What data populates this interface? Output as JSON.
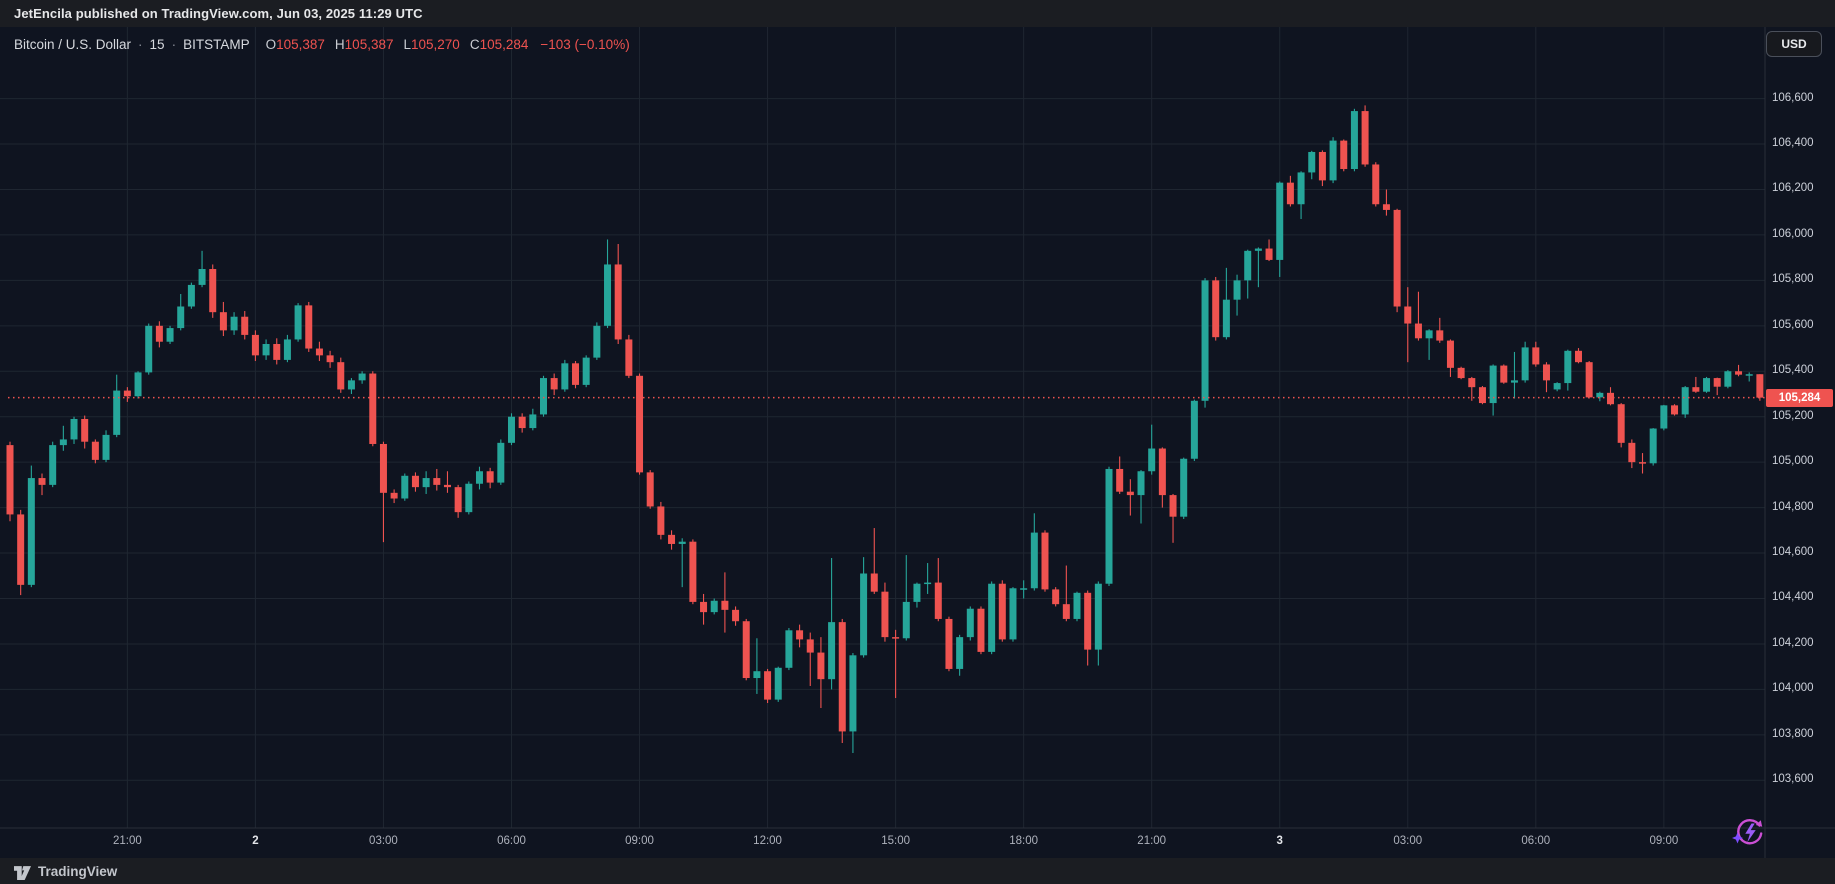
{
  "header": {
    "attribution": "JetEncila published on TradingView.com, Jun 03, 2025 11:29 UTC"
  },
  "symbol_bar": {
    "name": "Bitcoin / U.S. Dollar",
    "separator": "·",
    "interval": "15",
    "exchange": "BITSTAMP",
    "ohlc": [
      {
        "prefix": "O",
        "value": "105,387"
      },
      {
        "prefix": "H",
        "value": "105,387"
      },
      {
        "prefix": "L",
        "value": "105,270"
      },
      {
        "prefix": "C",
        "value": "105,284"
      }
    ],
    "change": "−103 (−0.10%)"
  },
  "currency_button": "USD",
  "footer": {
    "brand": "TradingView"
  },
  "price_axis": {
    "labels": [
      "106,600",
      "106,400",
      "106,200",
      "106,000",
      "105,800",
      "105,600",
      "105,400",
      "105,200",
      "105,000",
      "104,800",
      "104,600",
      "104,400",
      "104,200",
      "104,000",
      "103,800",
      "103,600"
    ],
    "last_price_label": "105,284"
  },
  "time_axis": {
    "labels": [
      {
        "text": "21:00",
        "candle_index": 11,
        "day": false
      },
      {
        "text": "2",
        "candle_index": 23,
        "day": true
      },
      {
        "text": "03:00",
        "candle_index": 35,
        "day": false
      },
      {
        "text": "06:00",
        "candle_index": 47,
        "day": false
      },
      {
        "text": "09:00",
        "candle_index": 59,
        "day": false
      },
      {
        "text": "12:00",
        "candle_index": 71,
        "day": false
      },
      {
        "text": "15:00",
        "candle_index": 83,
        "day": false
      },
      {
        "text": "18:00",
        "candle_index": 95,
        "day": false
      },
      {
        "text": "21:00",
        "candle_index": 107,
        "day": false
      },
      {
        "text": "3",
        "candle_index": 119,
        "day": true
      },
      {
        "text": "03:00",
        "candle_index": 131,
        "day": false
      },
      {
        "text": "06:00",
        "candle_index": 143,
        "day": false
      },
      {
        "text": "09:00",
        "candle_index": 155,
        "day": false
      }
    ]
  },
  "chart_data": {
    "type": "candlestick",
    "title": "Bitcoin / U.S. Dollar",
    "symbol": "BTCUSD",
    "exchange": "BITSTAMP",
    "interval_minutes": 15,
    "start_time": "2025-06-01 18:15 UTC",
    "end_time": "2025-06-03 11:15 UTC",
    "last_candle": {
      "open": 105387,
      "high": 105387,
      "low": 105270,
      "close": 105284,
      "change": -103,
      "change_pct": -0.1
    },
    "visible_price_range": [
      103390,
      106915
    ],
    "price_gridlines": [
      106600,
      106400,
      106200,
      106000,
      105800,
      105600,
      105400,
      105200,
      105000,
      104800,
      104600,
      104400,
      104200,
      104000,
      103800,
      103600
    ],
    "grid": true,
    "legend_position": "top-left",
    "up_color": "#26a69a",
    "down_color": "#ef5350",
    "last_price_line_color": "#ef5350",
    "candles": [
      [
        105075,
        105090,
        104740,
        104770
      ],
      [
        104770,
        104790,
        104415,
        104460
      ],
      [
        104460,
        104985,
        104450,
        104930
      ],
      [
        104930,
        104950,
        104855,
        104900
      ],
      [
        104900,
        105090,
        104890,
        105075
      ],
      [
        105075,
        105160,
        105050,
        105100
      ],
      [
        105100,
        105200,
        105080,
        105190
      ],
      [
        105190,
        105205,
        105060,
        105090
      ],
      [
        105090,
        105100,
        104995,
        105010
      ],
      [
        105010,
        105140,
        105000,
        105120
      ],
      [
        105120,
        105385,
        105110,
        105315
      ],
      [
        105315,
        105330,
        105265,
        105290
      ],
      [
        105290,
        105400,
        105280,
        105395
      ],
      [
        105395,
        105610,
        105385,
        105600
      ],
      [
        105600,
        105620,
        105505,
        105530
      ],
      [
        105530,
        105600,
        105520,
        105590
      ],
      [
        105590,
        105740,
        105580,
        105685
      ],
      [
        105685,
        105790,
        105675,
        105780
      ],
      [
        105780,
        105930,
        105770,
        105850
      ],
      [
        105850,
        105870,
        105635,
        105660
      ],
      [
        105660,
        105705,
        105555,
        105580
      ],
      [
        105580,
        105660,
        105560,
        105640
      ],
      [
        105640,
        105665,
        105540,
        105560
      ],
      [
        105560,
        105580,
        105445,
        105470
      ],
      [
        105470,
        105540,
        105450,
        105520
      ],
      [
        105520,
        105545,
        105430,
        105450
      ],
      [
        105450,
        105560,
        105440,
        105540
      ],
      [
        105540,
        105700,
        105530,
        105690
      ],
      [
        105690,
        105705,
        105485,
        105500
      ],
      [
        105500,
        105530,
        105445,
        105470
      ],
      [
        105470,
        105490,
        105415,
        105440
      ],
      [
        105440,
        105460,
        105305,
        105320
      ],
      [
        105320,
        105370,
        105300,
        105360
      ],
      [
        105360,
        105400,
        105345,
        105390
      ],
      [
        105390,
        105400,
        105070,
        105080
      ],
      [
        105080,
        105090,
        104648,
        104865
      ],
      [
        104865,
        104880,
        104820,
        104840
      ],
      [
        104840,
        104950,
        104830,
        104940
      ],
      [
        104940,
        104955,
        104870,
        104890
      ],
      [
        104890,
        104960,
        104860,
        104930
      ],
      [
        104930,
        104970,
        104875,
        104900
      ],
      [
        104900,
        104960,
        104865,
        104890
      ],
      [
        104890,
        104900,
        104755,
        104780
      ],
      [
        104780,
        104915,
        104770,
        104905
      ],
      [
        104905,
        104980,
        104880,
        104960
      ],
      [
        104960,
        104975,
        104885,
        104910
      ],
      [
        104910,
        105100,
        104900,
        105085
      ],
      [
        105085,
        105215,
        105075,
        105200
      ],
      [
        105200,
        105215,
        105130,
        105150
      ],
      [
        105150,
        105235,
        105140,
        105210
      ],
      [
        105210,
        105380,
        105200,
        105370
      ],
      [
        105370,
        105390,
        105295,
        105320
      ],
      [
        105320,
        105450,
        105310,
        105435
      ],
      [
        105435,
        105445,
        105325,
        105340
      ],
      [
        105340,
        105470,
        105330,
        105460
      ],
      [
        105460,
        105615,
        105450,
        105600
      ],
      [
        105600,
        105980,
        105590,
        105870
      ],
      [
        105870,
        105960,
        105520,
        105540
      ],
      [
        105540,
        105560,
        105370,
        105380
      ],
      [
        105380,
        105390,
        104945,
        104955
      ],
      [
        104955,
        104965,
        104795,
        104805
      ],
      [
        104805,
        104825,
        104660,
        104680
      ],
      [
        104680,
        104700,
        104615,
        104640
      ],
      [
        104640,
        104665,
        104450,
        104650
      ],
      [
        104650,
        104660,
        104375,
        104385
      ],
      [
        104385,
        104420,
        104285,
        104340
      ],
      [
        104340,
        104400,
        104330,
        104390
      ],
      [
        104390,
        104515,
        104250,
        104350
      ],
      [
        104350,
        104365,
        104280,
        104300
      ],
      [
        104300,
        104310,
        104040,
        104050
      ],
      [
        104050,
        104225,
        103980,
        104080
      ],
      [
        104080,
        104090,
        103940,
        103955
      ],
      [
        103955,
        104100,
        103945,
        104095
      ],
      [
        104095,
        104270,
        104085,
        104260
      ],
      [
        104260,
        104285,
        104185,
        104220
      ],
      [
        104220,
        104250,
        104015,
        104162
      ],
      [
        104162,
        104230,
        103918,
        104045
      ],
      [
        104045,
        104578,
        104000,
        104296
      ],
      [
        104296,
        104310,
        103764,
        103815
      ],
      [
        103815,
        104160,
        103720,
        104150
      ],
      [
        104150,
        104582,
        104140,
        104510
      ],
      [
        104510,
        104710,
        104420,
        104430
      ],
      [
        104430,
        104470,
        104210,
        104230
      ],
      [
        104230,
        104262,
        103962,
        104225
      ],
      [
        104225,
        104591,
        104215,
        104385
      ],
      [
        104385,
        104470,
        104360,
        104465
      ],
      [
        104465,
        104556,
        104420,
        104470
      ],
      [
        104470,
        104578,
        104300,
        104310
      ],
      [
        104310,
        104320,
        104080,
        104090
      ],
      [
        104090,
        104240,
        104060,
        104230
      ],
      [
        104230,
        104365,
        104215,
        104355
      ],
      [
        104355,
        104365,
        104155,
        104165
      ],
      [
        104165,
        104475,
        104155,
        104465
      ],
      [
        104465,
        104480,
        104210,
        104220
      ],
      [
        104220,
        104450,
        104210,
        104445
      ],
      [
        104445,
        104480,
        104400,
        104445
      ],
      [
        104445,
        104775,
        104435,
        104690
      ],
      [
        104690,
        104700,
        104430,
        104440
      ],
      [
        104440,
        104450,
        104365,
        104375
      ],
      [
        104375,
        104545,
        104300,
        104310
      ],
      [
        104310,
        104430,
        104300,
        104425
      ],
      [
        104425,
        104435,
        104105,
        104175
      ],
      [
        104175,
        104475,
        104105,
        104465
      ],
      [
        104465,
        104980,
        104455,
        104970
      ],
      [
        104970,
        105025,
        104860,
        104870
      ],
      [
        104870,
        104925,
        104765,
        104855
      ],
      [
        104855,
        104965,
        104730,
        104960
      ],
      [
        104960,
        105165,
        104945,
        105060
      ],
      [
        105060,
        105065,
        104800,
        104855
      ],
      [
        104855,
        104860,
        104645,
        104760
      ],
      [
        104760,
        105020,
        104750,
        105015
      ],
      [
        105015,
        105275,
        105005,
        105270
      ],
      [
        105270,
        105810,
        105240,
        105800
      ],
      [
        105800,
        105815,
        105535,
        105550
      ],
      [
        105550,
        105855,
        105540,
        105715
      ],
      [
        105715,
        105825,
        105645,
        105800
      ],
      [
        105800,
        105935,
        105720,
        105930
      ],
      [
        105930,
        105945,
        105770,
        105940
      ],
      [
        105940,
        105980,
        105885,
        105890
      ],
      [
        105890,
        106235,
        105815,
        106230
      ],
      [
        106230,
        106260,
        106125,
        106135
      ],
      [
        106135,
        106280,
        106070,
        106275
      ],
      [
        106275,
        106370,
        106245,
        106365
      ],
      [
        106365,
        106372,
        106215,
        106240
      ],
      [
        106240,
        106430,
        106228,
        106415
      ],
      [
        106415,
        106420,
        106280,
        106290
      ],
      [
        106290,
        106555,
        106280,
        106545
      ],
      [
        106545,
        106570,
        106300,
        106310
      ],
      [
        106310,
        106320,
        106125,
        106135
      ],
      [
        106135,
        106200,
        106085,
        106110
      ],
      [
        106110,
        106115,
        105660,
        105685
      ],
      [
        105685,
        105770,
        105440,
        105610
      ],
      [
        105610,
        105750,
        105535,
        105545
      ],
      [
        105545,
        105585,
        105450,
        105580
      ],
      [
        105580,
        105635,
        105525,
        105535
      ],
      [
        105535,
        105540,
        105375,
        105415
      ],
      [
        105415,
        105420,
        105365,
        105370
      ],
      [
        105370,
        105375,
        105270,
        105330
      ],
      [
        105330,
        105335,
        105255,
        105260
      ],
      [
        105260,
        105430,
        105205,
        105425
      ],
      [
        105425,
        105430,
        105345,
        105350
      ],
      [
        105350,
        105485,
        105280,
        105360
      ],
      [
        105360,
        105530,
        105350,
        105505
      ],
      [
        105505,
        105530,
        105420,
        105430
      ],
      [
        105430,
        105440,
        105308,
        105360
      ],
      [
        105320,
        105352,
        105312,
        105348
      ],
      [
        105348,
        105495,
        105315,
        105490
      ],
      [
        105490,
        105502,
        105435,
        105440
      ],
      [
        105440,
        105445,
        105280,
        105285
      ],
      [
        105285,
        105310,
        105268,
        105305
      ],
      [
        105305,
        105330,
        105250,
        105255
      ],
      [
        105255,
        105260,
        105065,
        105085
      ],
      [
        105085,
        105100,
        104974,
        105000
      ],
      [
        105000,
        105040,
        104950,
        104995
      ],
      [
        104995,
        105150,
        104985,
        105148
      ],
      [
        105148,
        105252,
        105140,
        105250
      ],
      [
        105250,
        105255,
        105205,
        105210
      ],
      [
        105210,
        105335,
        105195,
        105330
      ],
      [
        105330,
        105375,
        105305,
        105310
      ],
      [
        105310,
        105375,
        105305,
        105370
      ],
      [
        105370,
        105372,
        105295,
        105332
      ],
      [
        105332,
        105405,
        105325,
        105400
      ],
      [
        105400,
        105428,
        105378,
        105385
      ],
      [
        105385,
        105395,
        105355,
        105387
      ],
      [
        105387,
        105387,
        105270,
        105284
      ]
    ]
  },
  "colors": {
    "chart_bg": "#0f1420",
    "panel_bg": "#1b1d22",
    "grid": "#1f2631",
    "axis_separator": "#2a2e39",
    "up": "#26a69a",
    "down": "#ef5350",
    "label_bg": "#ef5350"
  }
}
